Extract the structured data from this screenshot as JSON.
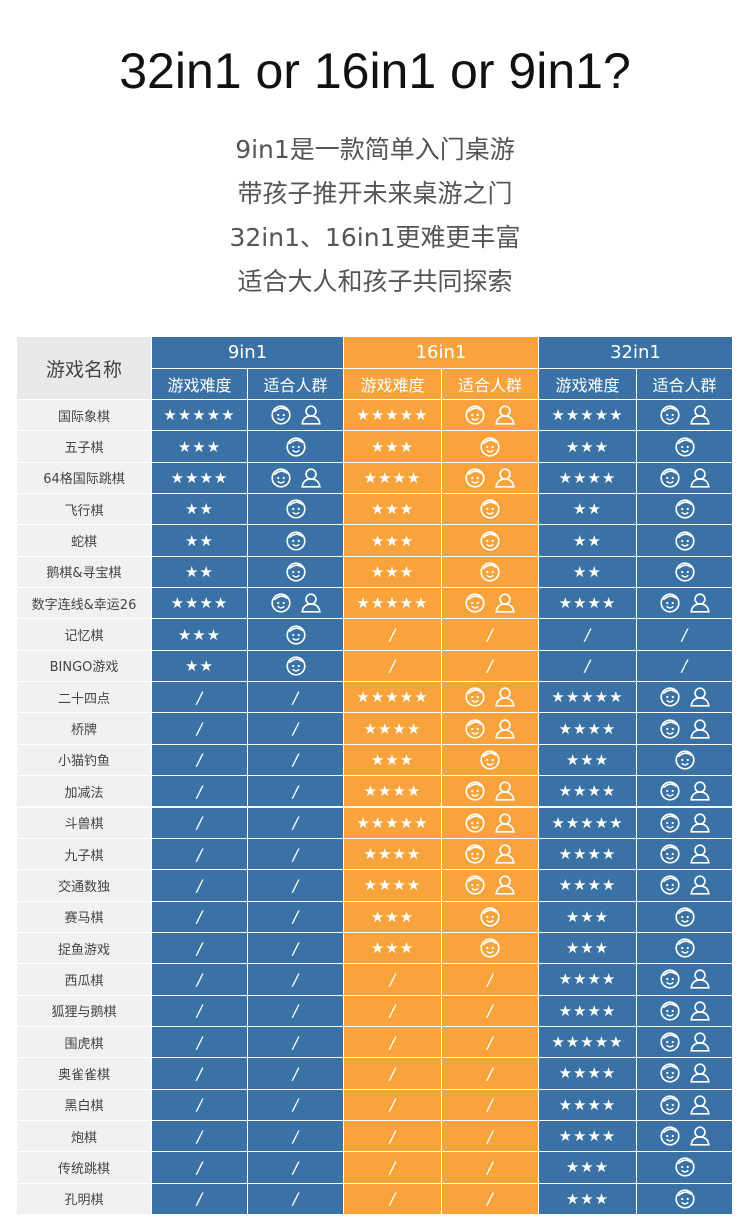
{
  "title": "32in1 or 16in1 or 9in1?",
  "intro": [
    "9in1是一款简单入门桌游",
    "带孩子推开未来桌游之门",
    "32in1、16in1更难更丰富",
    "适合大人和孩子共同探索"
  ],
  "table": {
    "corner": "游戏名称",
    "groups": [
      {
        "name": "9in1",
        "columns": [
          "游戏难度",
          "适合人群"
        ]
      },
      {
        "name": "16in1",
        "columns": [
          "游戏难度",
          "适合人群"
        ]
      },
      {
        "name": "32in1",
        "columns": [
          "游戏难度",
          "适合人群"
        ]
      }
    ],
    "rows": [
      {
        "name": "国际象棋",
        "cells": [
          [
            "★★★★★",
            2
          ],
          [
            "★★★★★",
            2
          ],
          [
            "★★★★★",
            2
          ]
        ]
      },
      {
        "name": "五子棋",
        "cells": [
          [
            "★★★",
            1
          ],
          [
            "★★★",
            1
          ],
          [
            "★★★",
            1
          ]
        ]
      },
      {
        "name": "64格国际跳棋",
        "cells": [
          [
            "★★★★",
            2
          ],
          [
            "★★★★",
            2
          ],
          [
            "★★★★",
            2
          ]
        ]
      },
      {
        "name": "飞行棋",
        "cells": [
          [
            "★★",
            1
          ],
          [
            "★★★",
            1
          ],
          [
            "★★",
            1
          ]
        ]
      },
      {
        "name": "蛇棋",
        "cells": [
          [
            "★★",
            1
          ],
          [
            "★★★",
            1
          ],
          [
            "★★",
            1
          ]
        ]
      },
      {
        "name": "鹅棋&寻宝棋",
        "cells": [
          [
            "★★",
            1
          ],
          [
            "★★★",
            1
          ],
          [
            "★★",
            1
          ]
        ]
      },
      {
        "name": "数字连线&幸运26",
        "cells": [
          [
            "★★★★",
            2
          ],
          [
            "★★★★★",
            2
          ],
          [
            "★★★★",
            2
          ]
        ]
      },
      {
        "name": "记忆棋",
        "cells": [
          [
            "★★★",
            1
          ],
          [
            "/",
            "/"
          ],
          [
            "/",
            "/"
          ]
        ]
      },
      {
        "name": "BINGO游戏",
        "cells": [
          [
            "★★",
            1
          ],
          [
            "/",
            "/"
          ],
          [
            "/",
            "/"
          ]
        ]
      },
      {
        "name": "二十四点",
        "cells": [
          [
            "/",
            "/"
          ],
          [
            "★★★★★",
            2
          ],
          [
            "★★★★★",
            2
          ]
        ]
      },
      {
        "name": "桥牌",
        "cells": [
          [
            "/",
            "/"
          ],
          [
            "★★★★",
            2
          ],
          [
            "★★★★",
            2
          ]
        ]
      },
      {
        "name": "小猫钓鱼",
        "cells": [
          [
            "/",
            "/"
          ],
          [
            "★★★",
            1
          ],
          [
            "★★★",
            1
          ]
        ]
      },
      {
        "name": "加减法",
        "cells": [
          [
            "/",
            "/"
          ],
          [
            "★★★★",
            2
          ],
          [
            "★★★★",
            2
          ]
        ]
      },
      {
        "name": "斗兽棋",
        "cells": [
          [
            "/",
            "/"
          ],
          [
            "★★★★★",
            2
          ],
          [
            "★★★★★",
            2
          ]
        ]
      },
      {
        "name": "九子棋",
        "cells": [
          [
            "/",
            "/"
          ],
          [
            "★★★★",
            2
          ],
          [
            "★★★★",
            2
          ]
        ]
      },
      {
        "name": "交通数独",
        "cells": [
          [
            "/",
            "/"
          ],
          [
            "★★★★",
            2
          ],
          [
            "★★★★",
            2
          ]
        ]
      },
      {
        "name": "赛马棋",
        "cells": [
          [
            "/",
            "/"
          ],
          [
            "★★★",
            1
          ],
          [
            "★★★",
            1
          ]
        ]
      },
      {
        "name": "捉鱼游戏",
        "cells": [
          [
            "/",
            "/"
          ],
          [
            "★★★",
            1
          ],
          [
            "★★★",
            1
          ]
        ]
      },
      {
        "name": "西瓜棋",
        "cells": [
          [
            "/",
            "/"
          ],
          [
            "/",
            "/"
          ],
          [
            "★★★★",
            2
          ]
        ]
      },
      {
        "name": "狐狸与鹅棋",
        "cells": [
          [
            "/",
            "/"
          ],
          [
            "/",
            "/"
          ],
          [
            "★★★★",
            2
          ]
        ]
      },
      {
        "name": "围虎棋",
        "cells": [
          [
            "/",
            "/"
          ],
          [
            "/",
            "/"
          ],
          [
            "★★★★★",
            2
          ]
        ]
      },
      {
        "name": "奥雀雀棋",
        "cells": [
          [
            "/",
            "/"
          ],
          [
            "/",
            "/"
          ],
          [
            "★★★★",
            2
          ]
        ]
      },
      {
        "name": "黑白棋",
        "cells": [
          [
            "/",
            "/"
          ],
          [
            "/",
            "/"
          ],
          [
            "★★★★",
            2
          ]
        ]
      },
      {
        "name": "炮棋",
        "cells": [
          [
            "/",
            "/"
          ],
          [
            "/",
            "/"
          ],
          [
            "★★★★",
            2
          ]
        ]
      },
      {
        "name": "传统跳棋",
        "cells": [
          [
            "/",
            "/"
          ],
          [
            "/",
            "/"
          ],
          [
            "★★★",
            1
          ]
        ]
      },
      {
        "name": "孔明棋",
        "cells": [
          [
            "/",
            "/"
          ],
          [
            "/",
            "/"
          ],
          [
            "★★★",
            1
          ]
        ]
      }
    ]
  }
}
